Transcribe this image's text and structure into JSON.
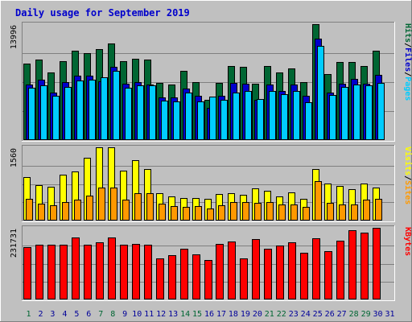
{
  "colors": {
    "background": "#C0C0C0",
    "frame_dark": "#808080",
    "frame_light": "#FFFFFF",
    "title_color": "#0000CC",
    "hits": "#006633",
    "files": "#0000CC",
    "pages": "#00CCFF",
    "visits": "#FFFF00",
    "sites": "#FF9900",
    "kbytes": "#FF0000",
    "weekend_label": "#006633",
    "weekday_label": "#000099",
    "hits_label": "#006633",
    "files_label": "#0000CC",
    "pages_label": "#00CCFF",
    "visits_label": "#FFFF00",
    "sites_label": "#FF9900",
    "kbytes_label": "#FF0000",
    "separator_label": "#000000"
  },
  "chart_data": {
    "type": "bar",
    "title": "Daily usage for September 2019",
    "days": [
      "1",
      "2",
      "3",
      "4",
      "5",
      "6",
      "7",
      "8",
      "9",
      "10",
      "11",
      "12",
      "13",
      "14",
      "15",
      "16",
      "17",
      "18",
      "19",
      "20",
      "21",
      "22",
      "23",
      "24",
      "25",
      "26",
      "27",
      "28",
      "29",
      "30",
      "31"
    ],
    "weekend_days": [
      "1",
      "7",
      "8",
      "14",
      "15",
      "21",
      "22",
      "28",
      "29"
    ],
    "panels": [
      {
        "id": "hits-files-pages",
        "ymax_label": "13996",
        "ymax": 13996,
        "axis_labels": [
          "Pages",
          "/",
          "Files",
          "/",
          "Hits"
        ],
        "series": [
          {
            "name": "Hits",
            "values": [
              9270,
              9730,
              8120,
              9500,
              10780,
              10460,
              10970,
              11650,
              9500,
              9820,
              9730,
              6870,
              6680,
              8330,
              6950,
              4820,
              6870,
              8940,
              8890,
              6790,
              8940,
              8180,
              8650,
              7010,
              14000,
              7980,
              9410,
              9430,
              8940,
              10830,
              null
            ]
          },
          {
            "name": "Files",
            "values": [
              6700,
              7310,
              5720,
              6970,
              7810,
              7790,
              7120,
              8810,
              6760,
              7010,
              6700,
              5160,
              5160,
              6220,
              5380,
              3840,
              5380,
              6880,
              6800,
              4840,
              6730,
              5940,
              6700,
              5320,
              12230,
              5720,
              6850,
              7340,
              6850,
              7830,
              null
            ]
          },
          {
            "name": "Pages",
            "values": [
              6350,
              6640,
              5330,
              6420,
              7230,
              7290,
              7560,
              8340,
              6320,
              6640,
              6570,
              4720,
              4710,
              5690,
              4650,
              5280,
              4880,
              5730,
              5910,
              4950,
              5910,
              5560,
              5920,
              4560,
              11330,
              5490,
              6370,
              6690,
              6620,
              6860,
              null
            ]
          }
        ]
      },
      {
        "id": "visits-sites",
        "ymax_label": "1560",
        "ymax": 1560,
        "axis_labels": [
          "Sites",
          "/",
          "Visits"
        ],
        "series": [
          {
            "name": "Visits",
            "values": [
              930,
              750,
              720,
              970,
              1050,
              1330,
              1560,
              1560,
              1060,
              1280,
              1100,
              580,
              510,
              480,
              480,
              460,
              570,
              590,
              540,
              680,
              640,
              520,
              600,
              460,
              1100,
              790,
              740,
              670,
              780,
              710,
              null
            ]
          },
          {
            "name": "Sites",
            "values": [
              470,
              360,
              330,
              390,
              440,
              530,
              710,
              700,
              450,
              590,
              580,
              360,
              310,
              290,
              300,
              250,
              320,
              400,
              390,
              380,
              400,
              340,
              340,
              290,
              840,
              380,
              350,
              350,
              450,
              470,
              null
            ]
          }
        ]
      },
      {
        "id": "kbytes",
        "ymax_label": "231731",
        "ymax": 231731,
        "axis_labels": [
          "KBytes"
        ],
        "series": [
          {
            "name": "KBytes",
            "values": [
              168000,
              178000,
              176000,
              176000,
              200000,
              176000,
              186000,
              201000,
              178000,
              179000,
              178000,
              134000,
              144000,
              163000,
              145000,
              128000,
              180000,
              188000,
              133000,
              196000,
              163000,
              175000,
              185000,
              150000,
              198000,
              155000,
              190000,
              224000,
              216000,
              232000,
              null
            ]
          }
        ]
      }
    ]
  }
}
